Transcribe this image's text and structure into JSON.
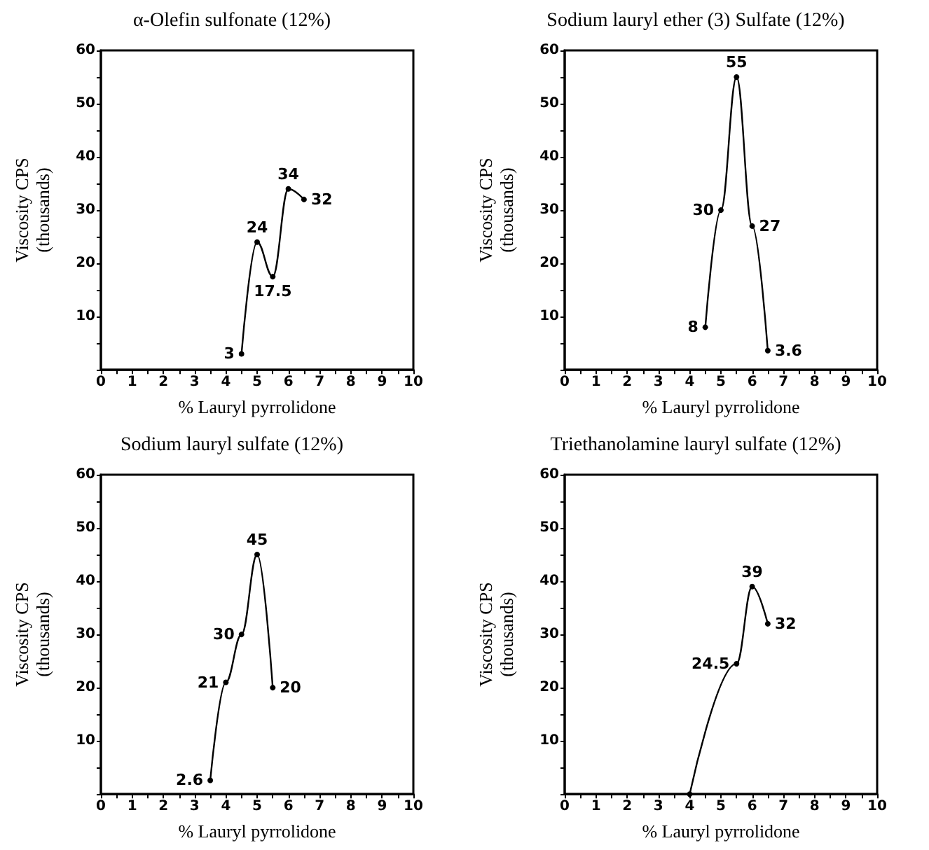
{
  "chart_data": [
    {
      "type": "line",
      "title": "α-Olefin sulfonate (12%)",
      "xlabel": "% Lauryl pyrrolidone",
      "ylabel": "Viscosity CPS\n(thousands)",
      "x": [
        4.5,
        5,
        5.5,
        6,
        6.5
      ],
      "series": [
        {
          "color": "#000000",
          "values": [
            3,
            24,
            17.5,
            34,
            32
          ]
        }
      ],
      "data_labels": true,
      "marker": "circle",
      "line_style": "solid",
      "grid": false,
      "xlim": [
        0,
        10
      ],
      "xticks": [
        0,
        {
          "value": 0.5,
          "label": null
        },
        1,
        {
          "value": 1.5,
          "label": null
        },
        2,
        {
          "value": 2.5,
          "label": null
        },
        3,
        {
          "value": 3.5,
          "label": null
        },
        4,
        {
          "value": 4.5,
          "label": null
        },
        5,
        {
          "value": 5.5,
          "label": null
        },
        6,
        {
          "value": 6.5,
          "label": null
        },
        7,
        {
          "value": 7.5,
          "label": null
        },
        8,
        {
          "value": 8.5,
          "label": null
        },
        9,
        {
          "value": 9.5,
          "label": null
        },
        10
      ],
      "ylim": [
        0,
        60
      ],
      "yticks": [
        {
          "value": 0,
          "label": null
        },
        {
          "value": 5,
          "label": null
        },
        10,
        {
          "value": 15,
          "label": null
        },
        20,
        {
          "value": 25,
          "label": null
        },
        30,
        {
          "value": 35,
          "label": null
        },
        40,
        {
          "value": 45,
          "label": null
        },
        50,
        {
          "value": 55,
          "label": null
        },
        60
      ]
    },
    {
      "type": "line",
      "title": "Sodium lauryl ether (3) Sulfate (12%)",
      "xlabel": "% Lauryl pyrrolidone",
      "ylabel": "Viscosity CPS\n(thousands)",
      "x": [
        4.5,
        5,
        5.5,
        6,
        6.5
      ],
      "series": [
        {
          "color": "#000000",
          "values": [
            8,
            30,
            55,
            27,
            3.6
          ]
        }
      ],
      "data_labels": true,
      "marker": "circle",
      "line_style": "solid",
      "grid": false,
      "xlim": [
        0,
        10
      ],
      "xticks": [
        0,
        {
          "value": 0.5,
          "label": null
        },
        1,
        {
          "value": 1.5,
          "label": null
        },
        2,
        {
          "value": 2.5,
          "label": null
        },
        3,
        {
          "value": 3.5,
          "label": null
        },
        4,
        {
          "value": 4.5,
          "label": null
        },
        5,
        {
          "value": 5.5,
          "label": null
        },
        6,
        {
          "value": 6.5,
          "label": null
        },
        7,
        {
          "value": 7.5,
          "label": null
        },
        8,
        {
          "value": 8.5,
          "label": null
        },
        9,
        {
          "value": 9.5,
          "label": null
        },
        10
      ],
      "ylim": [
        0,
        60
      ],
      "yticks": [
        {
          "value": 0,
          "label": null
        },
        {
          "value": 5,
          "label": null
        },
        10,
        {
          "value": 15,
          "label": null
        },
        20,
        {
          "value": 25,
          "label": null
        },
        30,
        {
          "value": 35,
          "label": null
        },
        40,
        {
          "value": 45,
          "label": null
        },
        50,
        {
          "value": 55,
          "label": null
        },
        60
      ]
    },
    {
      "type": "line",
      "title": "Sodium lauryl sulfate (12%)",
      "xlabel": "% Lauryl pyrrolidone",
      "ylabel": "Viscosity CPS\n(thousands)",
      "x": [
        3.5,
        4,
        4.5,
        5,
        5.5
      ],
      "series": [
        {
          "color": "#000000",
          "values": [
            2.6,
            21,
            30,
            45,
            20
          ]
        }
      ],
      "data_labels": true,
      "marker": "circle",
      "line_style": "solid",
      "grid": false,
      "xlim": [
        0,
        10
      ],
      "xticks": [
        0,
        {
          "value": 0.5,
          "label": null
        },
        1,
        {
          "value": 1.5,
          "label": null
        },
        2,
        {
          "value": 2.5,
          "label": null
        },
        3,
        {
          "value": 3.5,
          "label": null
        },
        4,
        {
          "value": 4.5,
          "label": null
        },
        5,
        {
          "value": 5.5,
          "label": null
        },
        6,
        {
          "value": 6.5,
          "label": null
        },
        7,
        {
          "value": 7.5,
          "label": null
        },
        8,
        {
          "value": 8.5,
          "label": null
        },
        9,
        {
          "value": 9.5,
          "label": null
        },
        10
      ],
      "ylim": [
        0,
        60
      ],
      "yticks": [
        {
          "value": 0,
          "label": null
        },
        {
          "value": 5,
          "label": null
        },
        10,
        {
          "value": 15,
          "label": null
        },
        20,
        {
          "value": 25,
          "label": null
        },
        30,
        {
          "value": 35,
          "label": null
        },
        40,
        {
          "value": 45,
          "label": null
        },
        50,
        {
          "value": 55,
          "label": null
        },
        60
      ]
    },
    {
      "type": "line",
      "title": "Triethanolamine lauryl sulfate (12%)",
      "xlabel": "% Lauryl pyrrolidone",
      "ylabel": "Viscosity CPS\n(thousands)",
      "x": [
        4,
        5.5,
        6,
        6.5
      ],
      "series": [
        {
          "color": "#000000",
          "values": [
            0,
            24.5,
            39,
            32
          ],
          "value_labels": [
            null,
            "24.5",
            "39",
            "32"
          ]
        }
      ],
      "marker": "circle",
      "line_style": "solid",
      "grid": false,
      "xlim": [
        0,
        10
      ],
      "xticks": [
        0,
        {
          "value": 0.5,
          "label": null
        },
        1,
        {
          "value": 1.5,
          "label": null
        },
        2,
        {
          "value": 2.5,
          "label": null
        },
        3,
        {
          "value": 3.5,
          "label": null
        },
        4,
        {
          "value": 4.5,
          "label": null
        },
        5,
        {
          "value": 5.5,
          "label": null
        },
        6,
        {
          "value": 6.5,
          "label": null
        },
        7,
        {
          "value": 7.5,
          "label": null
        },
        8,
        {
          "value": 8.5,
          "label": null
        },
        9,
        {
          "value": 9.5,
          "label": null
        },
        10
      ],
      "ylim": [
        0,
        60
      ],
      "yticks": [
        {
          "value": 0,
          "label": null
        },
        {
          "value": 5,
          "label": null
        },
        10,
        {
          "value": 15,
          "label": null
        },
        20,
        {
          "value": 25,
          "label": null
        },
        30,
        {
          "value": 35,
          "label": null
        },
        40,
        {
          "value": 45,
          "label": null
        },
        50,
        {
          "value": 55,
          "label": null
        },
        60
      ]
    }
  ]
}
